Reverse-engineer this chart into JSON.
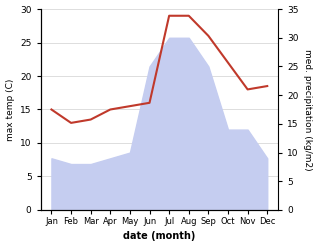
{
  "months": [
    "Jan",
    "Feb",
    "Mar",
    "Apr",
    "May",
    "Jun",
    "Jul",
    "Aug",
    "Sep",
    "Oct",
    "Nov",
    "Dec"
  ],
  "temperature": [
    15,
    13,
    13.5,
    15,
    15.5,
    16,
    29,
    29,
    26,
    22,
    18,
    18.5
  ],
  "precipitation": [
    9,
    8,
    8,
    9,
    10,
    25,
    30,
    30,
    25,
    14,
    14,
    9
  ],
  "temp_color": "#c0392b",
  "precip_fill_color": "#c5cdf0",
  "temp_ylim": [
    0,
    30
  ],
  "precip_ylim": [
    0,
    35
  ],
  "temp_yticks": [
    0,
    5,
    10,
    15,
    20,
    25,
    30
  ],
  "precip_yticks": [
    0,
    5,
    10,
    15,
    20,
    25,
    30,
    35
  ],
  "xlabel": "date (month)",
  "ylabel_left": "max temp (C)",
  "ylabel_right": "med. precipitation (kg/m2)",
  "bg_color": "#ffffff",
  "grid_color": "#d0d0d0",
  "line_width": 1.5
}
